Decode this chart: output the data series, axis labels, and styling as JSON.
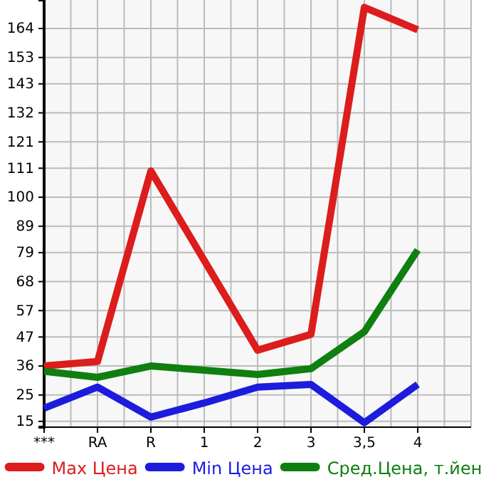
{
  "chart_data": {
    "type": "line",
    "categories": [
      "***",
      "RA",
      "R",
      "1",
      "2",
      "3",
      "3,5",
      "4"
    ],
    "series": [
      {
        "name": "Max Цена",
        "color": "#dd1c1c",
        "values": [
          36,
          37.7,
          110,
          76,
          42,
          48,
          172,
          163.5
        ]
      },
      {
        "name": "Min Цена",
        "color": "#1c1cdd",
        "values": [
          20,
          28,
          16.6,
          22,
          28,
          29,
          14.5,
          29
        ]
      },
      {
        "name": "Сред.Цена, т.йен",
        "color": "#0f7f0f",
        "values": [
          34,
          31.7,
          36,
          34.4,
          32.8,
          35,
          49,
          80
        ]
      }
    ],
    "ylim": [
      12.8,
      174.8
    ],
    "yticks": [
      15,
      25,
      36,
      47,
      57,
      68,
      79,
      89,
      100,
      111,
      121,
      132,
      143,
      153,
      164
    ],
    "grid": true,
    "legend": "bottom",
    "marker": "none",
    "line_style": "solid"
  }
}
